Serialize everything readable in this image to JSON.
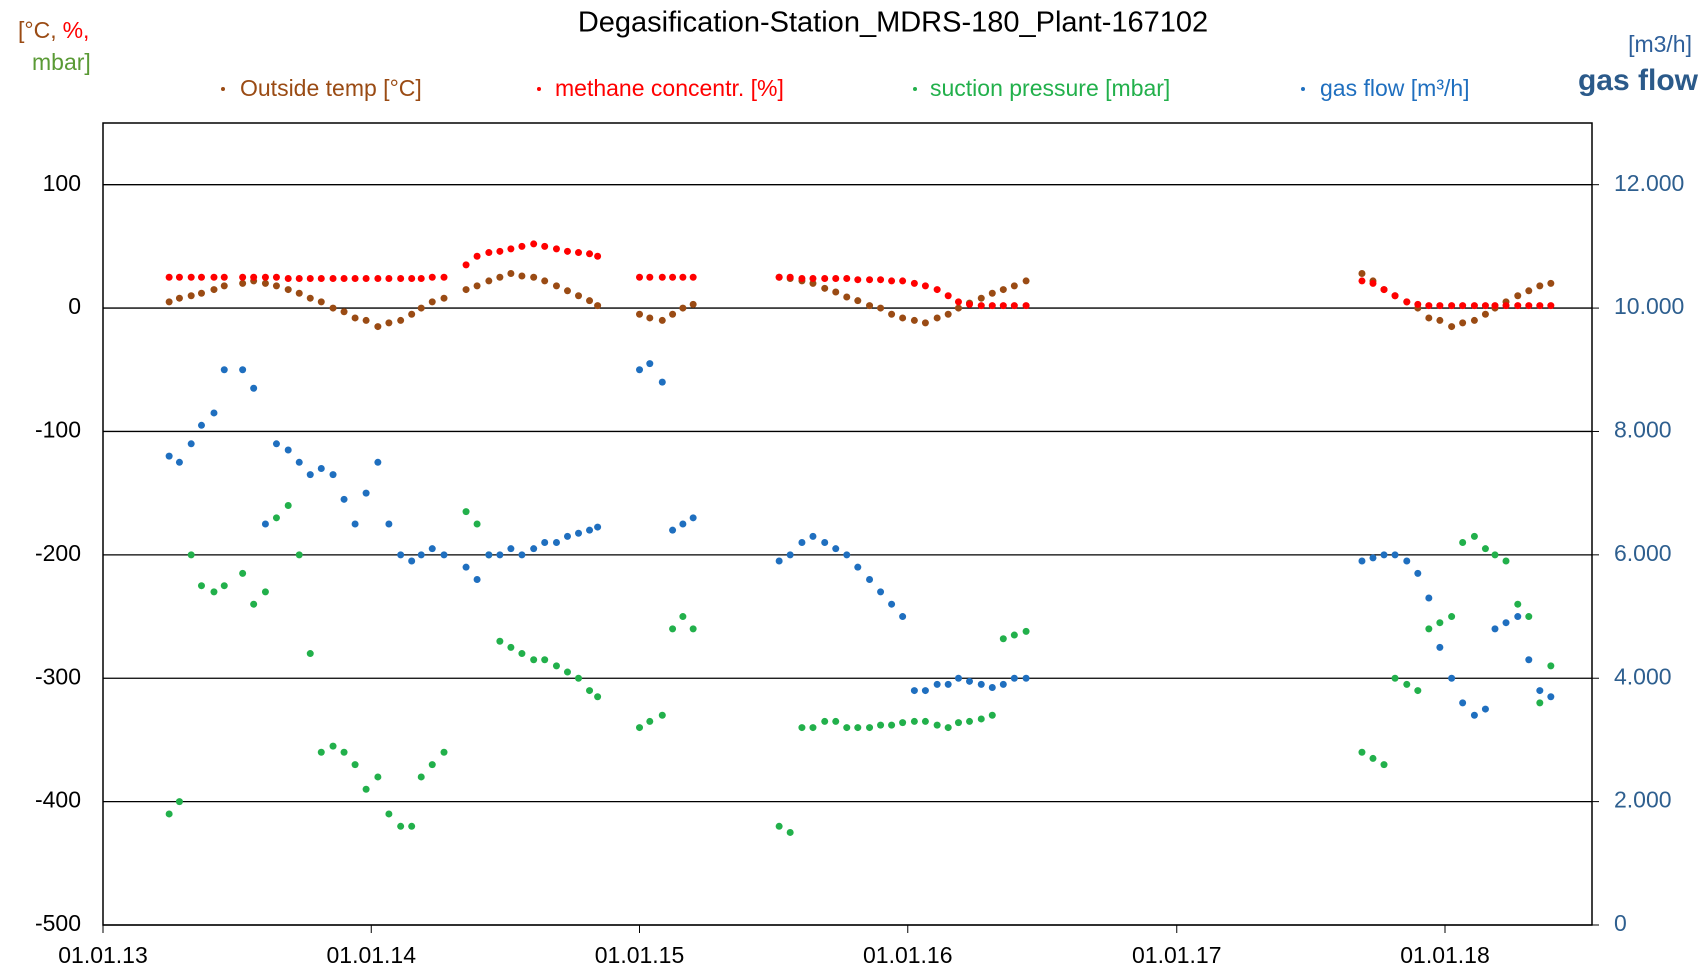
{
  "chart_data": {
    "type": "scatter",
    "title": "Degasification-Station_MDRS-180_Plant-167102",
    "y_axis_label_parts": [
      "[°C,",
      "%,",
      "mbar]"
    ],
    "y2_axis_label": "[m3/h]",
    "y2_title": "gas flow",
    "x": [
      "2013-04-01",
      "2013-04-15",
      "2013-05-01",
      "2013-05-15",
      "2013-06-01",
      "2013-06-15",
      "2013-07-10",
      "2013-07-25",
      "2013-08-10",
      "2013-08-25",
      "2013-09-10",
      "2013-09-25",
      "2013-10-10",
      "2013-10-25",
      "2013-11-10",
      "2013-11-25",
      "2013-12-10",
      "2013-12-25",
      "2014-01-10",
      "2014-01-25",
      "2014-02-10",
      "2014-02-25",
      "2014-03-10",
      "2014-03-25",
      "2014-04-10",
      "2014-05-10",
      "2014-05-25",
      "2014-06-10",
      "2014-06-25",
      "2014-07-10",
      "2014-07-25",
      "2014-08-10",
      "2014-08-25",
      "2014-09-10",
      "2014-09-25",
      "2014-10-10",
      "2014-10-25",
      "2014-11-05",
      "2015-01-01",
      "2015-01-15",
      "2015-02-01",
      "2015-02-15",
      "2015-03-01",
      "2015-03-15",
      "2015-07-10",
      "2015-07-25",
      "2015-08-10",
      "2015-08-25",
      "2015-09-10",
      "2015-09-25",
      "2015-10-10",
      "2015-10-25",
      "2015-11-10",
      "2015-11-25",
      "2015-12-10",
      "2015-12-25",
      "2016-01-10",
      "2016-01-25",
      "2016-02-10",
      "2016-02-25",
      "2016-03-10",
      "2016-03-25",
      "2016-04-10",
      "2016-04-25",
      "2016-05-10",
      "2016-05-25",
      "2016-06-10",
      "2017-09-10",
      "2017-09-25",
      "2017-10-10",
      "2017-10-25",
      "2017-11-10",
      "2017-11-25",
      "2017-12-10",
      "2017-12-25",
      "2018-01-10",
      "2018-01-25",
      "2018-02-10",
      "2018-02-25",
      "2018-03-10",
      "2018-03-25",
      "2018-04-10",
      "2018-04-25",
      "2018-05-10",
      "2018-05-25"
    ],
    "series": [
      {
        "name": "Outside temp [°C]",
        "color": "#9a4b14",
        "axis": "y",
        "values": [
          5,
          8,
          10,
          12,
          15,
          18,
          20,
          22,
          20,
          18,
          15,
          12,
          8,
          5,
          0,
          -3,
          -8,
          -10,
          -15,
          -12,
          -10,
          -5,
          0,
          5,
          8,
          15,
          18,
          22,
          25,
          28,
          26,
          25,
          22,
          18,
          14,
          10,
          6,
          2,
          -5,
          -8,
          -10,
          -5,
          0,
          3,
          25,
          24,
          22,
          20,
          16,
          13,
          9,
          6,
          2,
          0,
          -5,
          -8,
          -10,
          -12,
          -8,
          -5,
          0,
          4,
          8,
          12,
          15,
          18,
          22,
          28,
          22,
          15,
          10,
          5,
          0,
          -8,
          -10,
          -15,
          -12,
          -10,
          -5,
          0,
          5,
          10,
          14,
          18,
          20
        ]
      },
      {
        "name": "methane concentr. [%]",
        "color": "#ff0000",
        "axis": "y",
        "values": [
          25,
          25,
          25,
          25,
          25,
          25,
          25,
          25,
          25,
          25,
          24,
          24,
          24,
          24,
          24,
          24,
          24,
          24,
          24,
          24,
          24,
          24,
          24,
          25,
          25,
          35,
          42,
          45,
          46,
          48,
          50,
          52,
          50,
          48,
          46,
          45,
          44,
          42,
          25,
          25,
          25,
          25,
          25,
          25,
          25,
          25,
          24,
          24,
          24,
          24,
          24,
          23,
          23,
          23,
          22,
          22,
          20,
          18,
          15,
          10,
          5,
          3,
          2,
          2,
          2,
          2,
          2,
          22,
          20,
          15,
          10,
          5,
          3,
          2,
          2,
          2,
          2,
          2,
          2,
          2,
          2,
          2,
          2,
          2,
          2
        ]
      },
      {
        "name": "suction pressure [mbar]",
        "color": "#22b04b",
        "axis": "y",
        "values": [
          -410,
          -400,
          -200,
          -225,
          -230,
          -225,
          -215,
          -240,
          -230,
          -170,
          -160,
          -200,
          -280,
          -360,
          -355,
          -360,
          -370,
          -390,
          -380,
          -410,
          -420,
          -420,
          -380,
          -370,
          -360,
          -165,
          -175,
          -200,
          -270,
          -275,
          -280,
          -285,
          -285,
          -290,
          -295,
          -300,
          -310,
          -315,
          -340,
          -335,
          -330,
          -260,
          -250,
          -260,
          -420,
          -425,
          -340,
          -340,
          -335,
          -335,
          -340,
          -340,
          -340,
          -338,
          -338,
          -336,
          -335,
          -335,
          -338,
          -340,
          -336,
          -335,
          -333,
          -330,
          -268,
          -265,
          -262,
          -360,
          -365,
          -370,
          -300,
          -305,
          -310,
          -260,
          -255,
          -250,
          -190,
          -185,
          -195,
          -200,
          -205,
          -240,
          -250,
          -320,
          -290
        ]
      },
      {
        "name": "gas flow [m³/h]",
        "color": "#1f6fbf",
        "axis": "y2",
        "values": [
          7600,
          7500,
          7800,
          8100,
          8300,
          9000,
          9000,
          8700,
          6500,
          7800,
          7700,
          7500,
          7300,
          7400,
          7300,
          6900,
          6500,
          7000,
          7500,
          6500,
          6000,
          5900,
          6000,
          6100,
          6000,
          5800,
          5600,
          6000,
          6000,
          6100,
          6000,
          6100,
          6200,
          6200,
          6300,
          6350,
          6400,
          6450,
          9000,
          9100,
          8800,
          6400,
          6500,
          6600,
          5900,
          6000,
          6200,
          6300,
          6200,
          6100,
          6000,
          5800,
          5600,
          5400,
          5200,
          5000,
          3800,
          3800,
          3900,
          3900,
          4000,
          3950,
          3900,
          3850,
          3900,
          4000,
          4000,
          5900,
          5950,
          6000,
          6000,
          5900,
          5700,
          5300,
          4500,
          4000,
          3600,
          3400,
          3500,
          4800,
          4900,
          5000,
          4300,
          3800,
          3700
        ]
      }
    ],
    "xlim": [
      "2013-01-01",
      "2018-07-20"
    ],
    "xticks": [
      {
        "value": "2013-01-01",
        "label": "01.01.13"
      },
      {
        "value": "2014-01-01",
        "label": "01.01.14"
      },
      {
        "value": "2015-01-01",
        "label": "01.01.15"
      },
      {
        "value": "2016-01-01",
        "label": "01.01.16"
      },
      {
        "value": "2017-01-01",
        "label": "01.01.17"
      },
      {
        "value": "2018-01-01",
        "label": "01.01.18"
      }
    ],
    "ylim": [
      -500,
      150
    ],
    "yticks": [
      -500,
      -400,
      -300,
      -200,
      -100,
      0,
      100
    ],
    "y2lim": [
      0,
      13000
    ],
    "y2ticks": [
      0,
      {
        "value": 2000,
        "label": "2.000"
      },
      {
        "value": 4000,
        "label": "4.000"
      },
      {
        "value": 6000,
        "label": "6.000"
      },
      {
        "value": 8000,
        "label": "8.000"
      },
      {
        "value": 10000,
        "label": "10.000"
      },
      {
        "value": 12000,
        "label": "12.000"
      }
    ],
    "grid": true
  }
}
